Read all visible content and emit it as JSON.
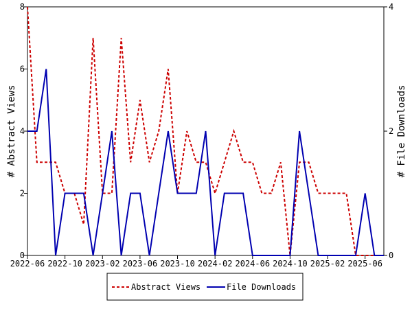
{
  "chart_data": {
    "type": "line",
    "xlabel": "",
    "ylabel_left": "# Abstract Views",
    "ylabel_right": "# File Downloads",
    "x_ticks": [
      "2022-06",
      "2022-10",
      "2023-02",
      "2023-06",
      "2023-10",
      "2024-02",
      "2024-06",
      "2024-10",
      "2025-02",
      "2025-06"
    ],
    "x_range": [
      "2022-06",
      "2025-08"
    ],
    "x": [
      "2022-06",
      "2022-07",
      "2022-08",
      "2022-09",
      "2022-10",
      "2022-11",
      "2022-12",
      "2023-01",
      "2023-02",
      "2023-03",
      "2023-04",
      "2023-05",
      "2023-06",
      "2023-07",
      "2023-08",
      "2023-09",
      "2023-10",
      "2023-11",
      "2023-12",
      "2024-01",
      "2024-02",
      "2024-03",
      "2024-04",
      "2024-05",
      "2024-06",
      "2024-07",
      "2024-08",
      "2024-09",
      "2024-10",
      "2024-11",
      "2024-12",
      "2025-01",
      "2025-02",
      "2025-03",
      "2025-04",
      "2025-05",
      "2025-06",
      "2025-07",
      "2025-08"
    ],
    "y_left_ticks": [
      "0",
      "2",
      "4",
      "6",
      "8"
    ],
    "y_left_range": [
      0,
      8
    ],
    "y_right_ticks": [
      "0",
      "2",
      "4"
    ],
    "y_right_range": [
      0,
      4
    ],
    "grid": false,
    "legend_position": "bottom",
    "series": [
      {
        "name": "Abstract Views",
        "axis": "left",
        "color": "#cc0000",
        "style": "dashed",
        "values": [
          8,
          3,
          3,
          3,
          2,
          2,
          1,
          7,
          2,
          2,
          7,
          3,
          5,
          3,
          4,
          6,
          2,
          4,
          3,
          3,
          2,
          3,
          4,
          3,
          3,
          2,
          2,
          3,
          0,
          3,
          3,
          2,
          2,
          2,
          2,
          0,
          0,
          0,
          0
        ]
      },
      {
        "name": "File Downloads",
        "axis": "right",
        "color": "#0000b0",
        "style": "solid",
        "values": [
          2,
          2,
          3,
          0,
          1,
          1,
          1,
          0,
          1,
          2,
          0,
          1,
          1,
          0,
          1,
          2,
          1,
          1,
          1,
          2,
          0,
          1,
          1,
          1,
          0,
          0,
          0,
          0,
          0,
          2,
          1,
          0,
          0,
          0,
          0,
          0,
          1,
          0,
          0
        ]
      }
    ]
  }
}
